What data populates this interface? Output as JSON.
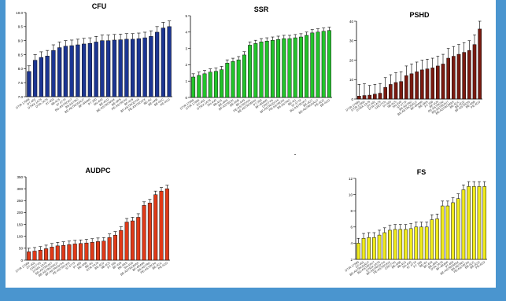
{
  "chart_data": [
    {
      "id": "cfu",
      "type": "bar",
      "title": "CFU",
      "color": "#1c3592",
      "ylim": [
        7.0,
        10.0
      ],
      "yticks": [
        "7.0",
        "7.5",
        "8.0",
        "8.5",
        "9.0",
        "9.5",
        "10.0"
      ],
      "values": [
        7.9,
        8.3,
        8.4,
        8.45,
        8.65,
        8.75,
        8.8,
        8.82,
        8.85,
        8.88,
        8.9,
        8.95,
        9.0,
        9.0,
        9.02,
        9.03,
        9.05,
        9.05,
        9.07,
        9.1,
        9.15,
        9.3,
        9.45,
        9.5
      ],
      "errors": [
        0.2,
        0.2,
        0.2,
        0.2,
        0.2,
        0.2,
        0.2,
        0.2,
        0.2,
        0.2,
        0.2,
        0.2,
        0.2,
        0.2,
        0.2,
        0.2,
        0.2,
        0.2,
        0.2,
        0.2,
        0.2,
        0.2,
        0.2,
        0.2
      ],
      "categories": [
        "DTIR 17969",
        "DT-401",
        "DTMX 1A78",
        "DTR-7A78",
        "9T-403",
        "9B-4C5",
        "97 4TTF",
        "BG-ASTROKIT",
        "B8-ASTRO",
        "BE-ASTRONAUT",
        "BF-4RAMI",
        "PT 200",
        "SN-4V0",
        "BE-4CD",
        "BE-ASTROMAX",
        "BE-4RS",
        "PE-ASTRONI",
        "BF-4V9",
        "BF-ASTRODTHI",
        "PE-ASTROXIX",
        "BE-4U",
        "BE-4AB",
        "BE-4CC",
        "PE-4CD"
      ]
    },
    {
      "id": "ssr",
      "type": "bar",
      "title": "SSR",
      "color": "#22c42a",
      "ylim": [
        0,
        5
      ],
      "yticks": [
        "0",
        "1",
        "2",
        "3",
        "4",
        "5"
      ],
      "values": [
        1.25,
        1.35,
        1.45,
        1.55,
        1.6,
        1.7,
        2.1,
        2.2,
        2.3,
        2.6,
        3.2,
        3.3,
        3.4,
        3.45,
        3.5,
        3.55,
        3.6,
        3.6,
        3.65,
        3.7,
        3.8,
        3.95,
        4.0,
        4.05,
        4.1
      ],
      "errors": [
        0.2,
        0.2,
        0.2,
        0.2,
        0.2,
        0.2,
        0.2,
        0.2,
        0.2,
        0.2,
        0.2,
        0.2,
        0.2,
        0.2,
        0.2,
        0.2,
        0.2,
        0.2,
        0.2,
        0.2,
        0.2,
        0.2,
        0.2,
        0.2,
        0.2
      ],
      "categories": [
        "DTIR 17969",
        "DTIR 17894",
        "DT-401",
        "DTMX 1A78",
        "SN-4V0",
        "9B-4C5",
        "BE-4RS",
        "BF-ASTRON",
        "BE-4AB",
        "BF-4V9",
        "PE-ASTROXIX",
        "BE-ASTROMAX",
        "PT 200",
        "BF-4RAMI",
        "CROTYN",
        "BF-ASTRODTHI",
        "PE-ASTRONI",
        "B8-ASTRO",
        "BE-4U",
        "97 4TTF",
        "BG-ASTROKIT",
        "BE-4CC",
        "BE-ASTRONAUT",
        "PE-4CD",
        "BE-4CD"
      ]
    },
    {
      "id": "pshd",
      "type": "bar",
      "title": "PSHD",
      "color": "#7a1a10",
      "ylim": [
        0,
        40
      ],
      "yticks": [
        "0",
        "10",
        "20",
        "30",
        "40"
      ],
      "values": [
        1.5,
        1.8,
        2.0,
        2.5,
        3.0,
        6.0,
        7.5,
        8.5,
        9.0,
        12.0,
        13.0,
        14.0,
        15.0,
        15.5,
        16.0,
        17.0,
        18.0,
        21.0,
        22.0,
        23.0,
        24.0,
        25.0,
        28.0,
        36.0
      ],
      "errors": [
        6,
        6,
        5,
        5,
        5,
        5,
        5,
        5,
        5,
        5,
        5,
        5,
        5,
        5,
        5,
        5,
        5,
        5,
        5,
        5,
        5,
        5,
        5,
        5
      ],
      "categories": [
        "DTIR 17969",
        "DTIR 17894",
        "DTMX 1A78",
        "DT-401",
        "DTR-7A78",
        "CROTYN",
        "9T-403",
        "9B-4C5",
        "SN-4V0",
        "97 4TTF",
        "B8-ASTRO",
        "BE-ASTRONAUT",
        "BF-4RAMI",
        "BE-4RS",
        "PT 200",
        "BF-4V9",
        "PE-ASTRONI",
        "BG-ASTROKIT",
        "BE-ASTROMAX",
        "BE-4CC",
        "BE-4CD",
        "BF-ASTRON",
        "BE-4AB",
        "PE-4CD"
      ]
    },
    {
      "id": "audpc",
      "type": "bar",
      "title": "AUDPC",
      "color": "#e03a18",
      "ylim": [
        0,
        350
      ],
      "yticks": [
        "0",
        "50",
        "100",
        "150",
        "200",
        "250",
        "300",
        "350"
      ],
      "values": [
        35,
        38,
        42,
        48,
        55,
        60,
        62,
        65,
        68,
        70,
        72,
        75,
        78,
        80,
        95,
        105,
        125,
        160,
        165,
        180,
        230,
        240,
        275,
        290,
        300
      ],
      "errors": [
        15,
        15,
        15,
        15,
        15,
        15,
        15,
        15,
        15,
        15,
        15,
        15,
        15,
        15,
        15,
        15,
        15,
        15,
        15,
        15,
        15,
        15,
        15,
        15,
        15
      ],
      "categories": [
        "DTIR 17969",
        "DT-401",
        "CROTYN",
        "DTMX 1A78",
        "BG-ASTROKIT",
        "BE-ASTRONAUT",
        "BF-ASTRODTHI",
        "PE-ASTROXIX",
        "97 4TTF",
        "9T-403",
        "BE-4AB",
        "BE-4U",
        "DTR-7A78",
        "BE-4CD",
        "9B-4C5",
        "PT 200",
        "BF-4V9",
        "BE-4RS",
        "SN-4V0",
        "BE-ASTROMAX",
        "BF-4RAMI",
        "B8-ASTRO",
        "PE-ASTRONI",
        "BE-4CC",
        "PE-4CD"
      ]
    },
    {
      "id": "fs",
      "type": "bar",
      "title": "FS",
      "color": "#f1ec1c",
      "ylim": [
        2,
        12
      ],
      "yticks": [
        "2",
        "4",
        "6",
        "8",
        "10",
        "12"
      ],
      "values": [
        4.0,
        4.6,
        4.7,
        4.7,
        5.0,
        5.3,
        5.6,
        5.7,
        5.7,
        5.7,
        5.8,
        6.0,
        6.0,
        6.0,
        6.9,
        7.0,
        8.6,
        8.6,
        9.0,
        9.5,
        10.6,
        11.0,
        11.0,
        11.0,
        11.0
      ],
      "errors": [
        0.6,
        0.6,
        0.6,
        0.6,
        0.6,
        0.6,
        0.6,
        0.6,
        0.6,
        0.6,
        0.6,
        0.6,
        0.6,
        0.6,
        0.6,
        0.6,
        0.6,
        0.6,
        0.6,
        0.6,
        0.6,
        0.6,
        0.6,
        0.6,
        0.6
      ],
      "categories": [
        "DTIR 17969",
        "DT-401",
        "BE-ASTRONAUT",
        "BG-ASTROKIT",
        "DTMX 1A78",
        "BF-ASTRODTHI",
        "PE-ASTROXIX",
        "CROTYN",
        "BE-4AB",
        "9B-4C5",
        "SN-4V0",
        "97 4TTF",
        "PT 200",
        "BE-4U",
        "BF-4V9",
        "BE-4RS",
        "DTR-7A78",
        "BF-4RAMI",
        "9T-403",
        "BE-ASTROMAX",
        "B8-ASTRO",
        "PE-ASTRONI",
        "BE-4CC",
        "BE-4CD",
        "PE-4CD"
      ]
    }
  ]
}
